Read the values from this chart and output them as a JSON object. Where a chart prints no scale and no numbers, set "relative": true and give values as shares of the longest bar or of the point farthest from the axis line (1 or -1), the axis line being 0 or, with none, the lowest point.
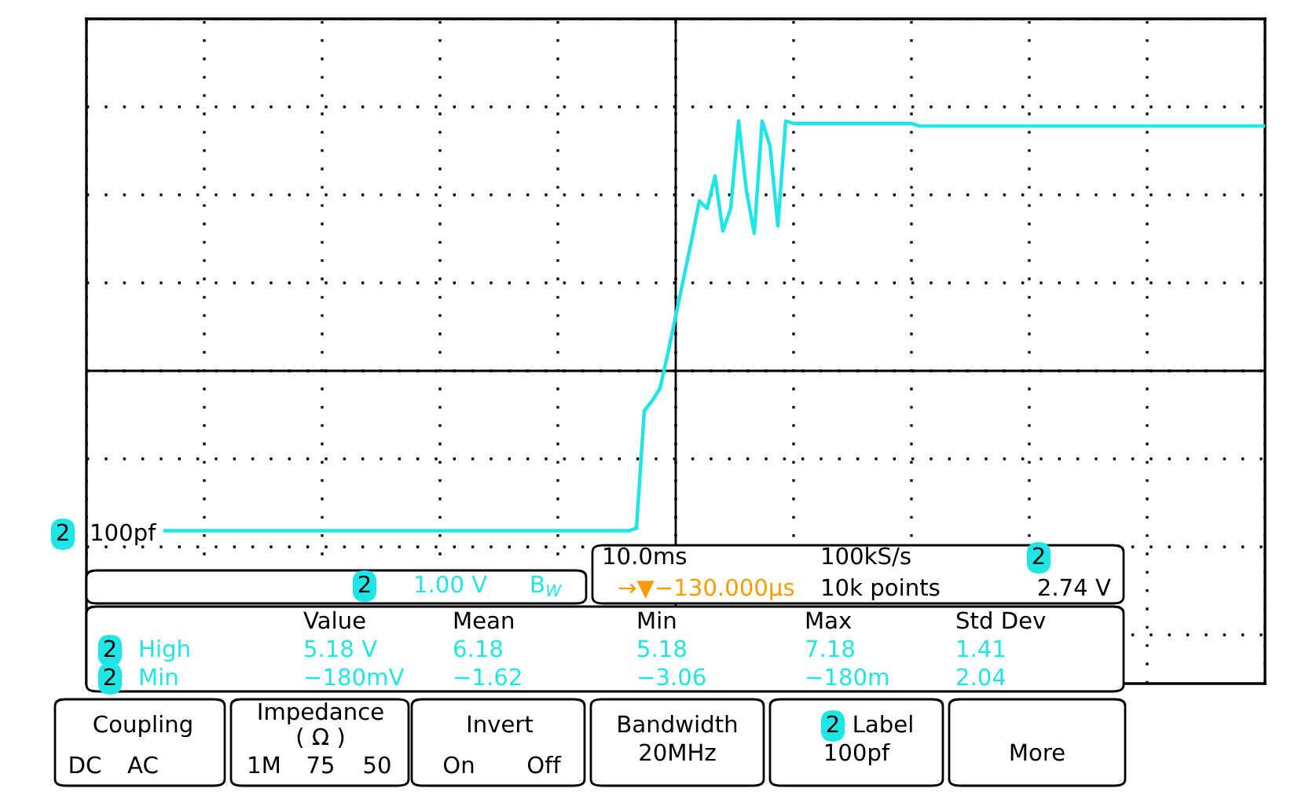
{
  "chart_data": {
    "type": "line",
    "relative": true,
    "grid": true,
    "categories": [
      null,
      null,
      null,
      null,
      null,
      null,
      null,
      null,
      null,
      null,
      null,
      null,
      null,
      null,
      null,
      null,
      null,
      null,
      null,
      null,
      null,
      null,
      null,
      null,
      null,
      null,
      null,
      null,
      null,
      null,
      null,
      null,
      null,
      null,
      null,
      null,
      null,
      null,
      null,
      null,
      null,
      null,
      null,
      null,
      null,
      null,
      null,
      null,
      null,
      null,
      null,
      null,
      null,
      null,
      null,
      null,
      null,
      null,
      null,
      null,
      null,
      null,
      null,
      null,
      null,
      null,
      null,
      null,
      null,
      null,
      null,
      null,
      null,
      null,
      null,
      null,
      null,
      null,
      null,
      null,
      null,
      null,
      null,
      null,
      null,
      null,
      null,
      null,
      null,
      null,
      null,
      null,
      null,
      null,
      null,
      null,
      null,
      null,
      null,
      null,
      null,
      null,
      null,
      null,
      null,
      null,
      null,
      null,
      null,
      null,
      null,
      null,
      null,
      null,
      null,
      null,
      null,
      null,
      null,
      null,
      null,
      null,
      null,
      null,
      null,
      null,
      null,
      null,
      null,
      null,
      null,
      null,
      null,
      null,
      null,
      null,
      null,
      null,
      null,
      null,
      null
    ],
    "series": [
      {
        "color": "#1ee6e6",
        "values": [
          -0.64,
          -0.64,
          -0.64,
          -0.64,
          -0.64,
          -0.64,
          -0.64,
          -0.64,
          -0.64,
          -0.64,
          -0.64,
          -0.64,
          -0.64,
          -0.64,
          -0.64,
          -0.64,
          -0.64,
          -0.64,
          -0.64,
          -0.64,
          -0.64,
          -0.64,
          -0.64,
          -0.64,
          -0.64,
          -0.64,
          -0.64,
          -0.64,
          -0.64,
          -0.64,
          -0.64,
          -0.64,
          -0.64,
          -0.64,
          -0.64,
          -0.64,
          -0.64,
          -0.64,
          -0.64,
          -0.64,
          -0.64,
          -0.64,
          -0.64,
          -0.64,
          -0.64,
          -0.64,
          -0.64,
          -0.64,
          -0.64,
          -0.64,
          -0.64,
          -0.64,
          -0.64,
          -0.64,
          -0.64,
          -0.64,
          -0.64,
          -0.64,
          -0.64,
          -0.64,
          -0.63,
          -0.16,
          -0.12,
          -0.07,
          0.07,
          0.22,
          0.37,
          0.52,
          0.68,
          0.65,
          0.78,
          0.56,
          0.65,
          1.0,
          0.72,
          0.55,
          1.0,
          0.9,
          0.58,
          1.0,
          0.99,
          0.99,
          0.99,
          0.99,
          0.99,
          0.99,
          0.99,
          0.99,
          0.99,
          0.99,
          0.99,
          0.99,
          0.99,
          0.99,
          0.99,
          0.99,
          0.98,
          0.98,
          0.98,
          0.98,
          0.98,
          0.98,
          0.98,
          0.98,
          0.98,
          0.98,
          0.98,
          0.98,
          0.98,
          0.98,
          0.98,
          0.98,
          0.98,
          0.98,
          0.98,
          0.98,
          0.98,
          0.98,
          0.98,
          0.98,
          0.98,
          0.98,
          0.98,
          0.98,
          0.98,
          0.98,
          0.98,
          0.98,
          0.98,
          0.98,
          0.98,
          0.98,
          0.98,
          0.98,
          0.98,
          0.98,
          0.98,
          0.98,
          0.98,
          0.98,
          0.98
        ]
      }
    ],
    "annotations": [
      "2",
      "100pf",
      "2",
      "1.00 V",
      "B$_{W}$",
      "10.0ms",
      "100kS/s",
      "2",
      "→▼−130.000µs",
      "10k points",
      "2.74 V",
      "Value",
      "Mean",
      "Min",
      "Max",
      "Std Dev",
      "2",
      "High",
      "5.18 V",
      "6.18",
      "5.18",
      "7.18",
      "1.41",
      "2",
      "Min",
      "−180mV",
      "−1.62",
      "−3.06",
      "−180m",
      "2.04",
      "Coupling",
      "DC",
      "AC",
      "Impedance",
      "( Ω )",
      "1M",
      "75",
      "50",
      "Invert",
      "On",
      "Off",
      "Bandwidth",
      "20MHz",
      "2",
      "Label",
      "100pf",
      "More"
    ]
  }
}
